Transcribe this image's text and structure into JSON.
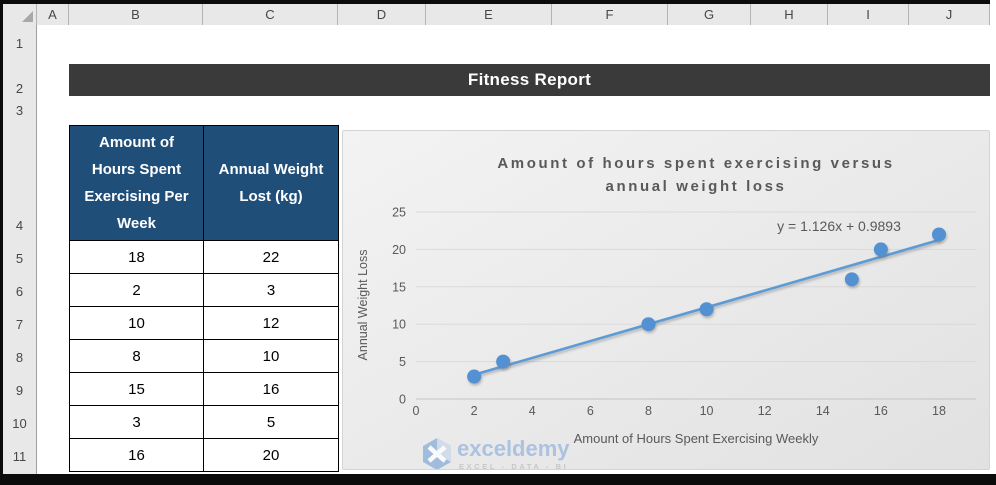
{
  "banner": {
    "title": "Fitness Report",
    "bg": "#3A3A3A"
  },
  "spreadsheet": {
    "column_letters": [
      "A",
      "B",
      "C",
      "D",
      "E",
      "F",
      "G",
      "H",
      "I",
      "J"
    ],
    "row_numbers": [
      1,
      2,
      3,
      4,
      5,
      6,
      7,
      8,
      9,
      10,
      11
    ]
  },
  "table": {
    "header_bg": "#1F4E79",
    "columns": [
      "Amount of Hours Spent Exercising Per Week",
      "Annual Weight Lost (kg)"
    ],
    "rows": [
      [
        18,
        22
      ],
      [
        2,
        3
      ],
      [
        10,
        12
      ],
      [
        8,
        10
      ],
      [
        15,
        16
      ],
      [
        3,
        5
      ],
      [
        16,
        20
      ]
    ]
  },
  "chart_data": {
    "type": "scatter",
    "title": "Amount of hours spent exercising versus annual weight loss",
    "title_lines": [
      "Amount of hours spent exercising versus",
      "annual weight loss"
    ],
    "xlabel": "Amount of Hours Spent Exercising Weekly",
    "ylabel": "Annual Weight Loss",
    "points": [
      {
        "x": 18,
        "y": 22
      },
      {
        "x": 2,
        "y": 3
      },
      {
        "x": 10,
        "y": 12
      },
      {
        "x": 8,
        "y": 10
      },
      {
        "x": 15,
        "y": 16
      },
      {
        "x": 3,
        "y": 5
      },
      {
        "x": 16,
        "y": 20
      }
    ],
    "trendline": {
      "equation": "y = 1.126x + 0.9893",
      "slope": 1.126,
      "intercept": 0.9893,
      "x_start": 2,
      "x_end": 18
    },
    "xlim": [
      0,
      18
    ],
    "ylim": [
      0,
      25
    ],
    "x_ticks": [
      0,
      2,
      4,
      6,
      8,
      10,
      12,
      14,
      16,
      18
    ],
    "y_ticks": [
      0,
      5,
      10,
      15,
      20,
      25
    ],
    "grid": "horizontal",
    "legend": "none",
    "marker_color": "#5291D2",
    "line_color": "#5B9BD5",
    "gridline_color": "#d9d9d9",
    "axis_text_color": "#595959"
  },
  "watermark": {
    "brand": "exceldemy",
    "tagline": "EXCEL - DATA - BI"
  }
}
